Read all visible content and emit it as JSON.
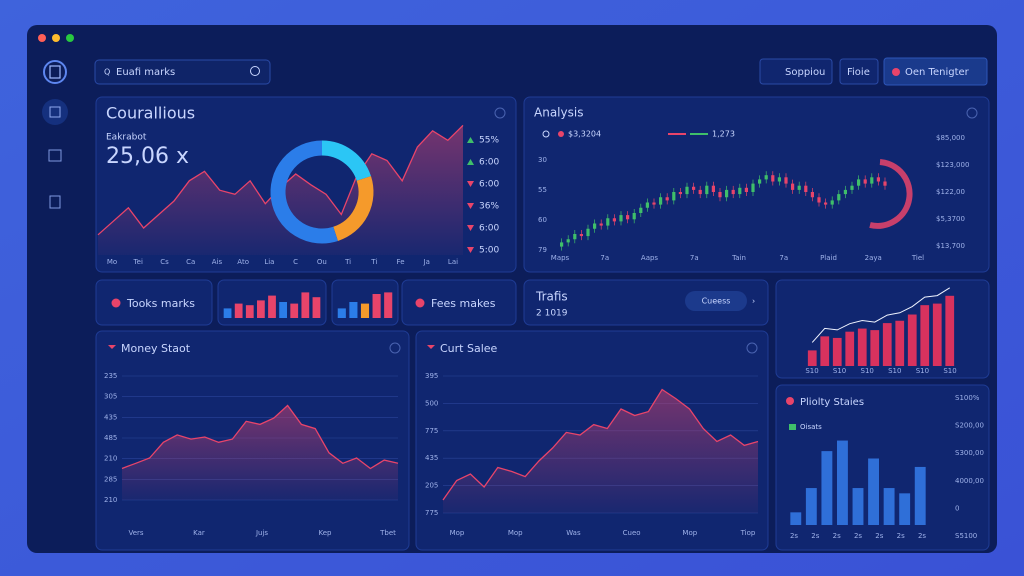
{
  "header": {
    "search": "Euafi marks",
    "buttons": [
      "Soppiou",
      "Fioie",
      "Oen Tenigter"
    ]
  },
  "widgets": {
    "left_pill": "Tooks marks",
    "right_pill": "Fees makes",
    "trafis_title": "Trafis",
    "trafis_value": "2 1019",
    "trafis_toggle": "Cueess"
  },
  "chart_data": [
    {
      "type": "area",
      "title": "Courallious",
      "subtitle": "Eakrabot",
      "kpi": "25,06 x",
      "color": "#e8446a",
      "values": [
        15,
        25,
        35,
        20,
        30,
        40,
        55,
        62,
        48,
        45,
        55,
        38,
        50,
        60,
        52,
        45,
        30,
        58,
        75,
        70,
        55,
        80,
        92,
        85,
        96
      ],
      "ylim": [
        0,
        100
      ],
      "x_labels": [
        "Mo",
        "Tei",
        "Cs",
        "Ca",
        "Ais",
        "Ato",
        "Lia",
        "C",
        "Ou",
        "Ti",
        "Ti",
        "Fe",
        "Ja",
        "Lai"
      ],
      "legend": [
        {
          "label": "55%",
          "color": "#3fbf6a"
        },
        {
          "label": "6:00",
          "color": "#3fbf6a"
        },
        {
          "label": "6:00",
          "color": "#e8446a"
        },
        {
          "label": "36%",
          "color": "#e8446a"
        },
        {
          "label": "6:00",
          "color": "#e8446a"
        },
        {
          "label": "5:00",
          "color": "#e8446a"
        }
      ]
    },
    {
      "type": "donut",
      "values": [
        20,
        25,
        55
      ],
      "colors": [
        "#2bc6f5",
        "#f59a2b",
        "#2b7de9"
      ]
    },
    {
      "type": "candles",
      "title": "Analysis",
      "legend": [
        "$3,3204",
        "1,273"
      ],
      "up_color": "#3fbf6a",
      "down_color": "#e8446a",
      "values": [
        8,
        12,
        15,
        20,
        18,
        25,
        30,
        28,
        35,
        32,
        38,
        34,
        40,
        45,
        50,
        48,
        55,
        52,
        60,
        58,
        65,
        62,
        58,
        66,
        60,
        55,
        62,
        58,
        64,
        60,
        68,
        72,
        76,
        70,
        74,
        68,
        62,
        66,
        60,
        55,
        50,
        48,
        52,
        58,
        62,
        66,
        72,
        68,
        74,
        70,
        66
      ],
      "ylim": [
        0,
        100
      ],
      "y_labels": [
        "30",
        "55",
        "60",
        "79"
      ],
      "y2_labels": [
        "$85,000",
        "$123,000",
        "$122,00",
        "$5,3700",
        "$13,700"
      ],
      "x_labels": [
        "Maps",
        "7a",
        "Aaps",
        "7a",
        "Tain",
        "7a",
        "Plaid",
        "2aya",
        "Tiel"
      ]
    },
    {
      "type": "bar",
      "values": [
        30,
        45,
        40,
        55,
        70,
        50,
        45,
        80,
        65
      ],
      "ylim": [
        0,
        100
      ],
      "colors": [
        "#2b7de9",
        "#e8446a",
        "#e8446a",
        "#e8446a",
        "#e8446a",
        "#2b7de9",
        "#e8446a",
        "#e8446a",
        "#e8446a"
      ]
    },
    {
      "type": "bar",
      "values": [
        30,
        50,
        45,
        75,
        80
      ],
      "ylim": [
        0,
        100
      ],
      "colors": [
        "#2b7de9",
        "#2b7de9",
        "#f59a2b",
        "#e8446a",
        "#e8446a"
      ]
    },
    {
      "type": "bar",
      "values": [
        20,
        38,
        36,
        44,
        48,
        46,
        55,
        58,
        66,
        78,
        80,
        90
      ],
      "ylim": [
        0,
        100
      ],
      "color": "#d8325e",
      "line": true,
      "x_labels": [
        "S10",
        "S10",
        "S10",
        "S10",
        "S10",
        "S10"
      ]
    },
    {
      "type": "area",
      "title": "Money Staot",
      "color": "#e8446a",
      "values": [
        30,
        35,
        40,
        55,
        62,
        58,
        60,
        55,
        58,
        75,
        72,
        78,
        90,
        72,
        68,
        45,
        35,
        40,
        30,
        38,
        35
      ],
      "ylim": [
        0,
        100
      ],
      "y_labels": [
        "235",
        "305",
        "435",
        "485",
        "210",
        "285",
        "210"
      ],
      "x_labels": [
        "Vers",
        "Kar",
        "Jujs",
        "Kep",
        "Tbet"
      ]
    },
    {
      "type": "area",
      "title": "Curt Salee",
      "color": "#e8446a",
      "values": [
        10,
        25,
        30,
        20,
        35,
        32,
        28,
        40,
        50,
        62,
        60,
        68,
        65,
        80,
        75,
        78,
        95,
        88,
        80,
        65,
        55,
        60,
        52,
        55
      ],
      "ylim": [
        0,
        100
      ],
      "y_labels": [
        "395",
        "500",
        "775",
        "435",
        "205",
        "775"
      ],
      "x_labels": [
        "Mop",
        "Mop",
        "Was",
        "Cueo",
        "Mop",
        "Tiop"
      ]
    },
    {
      "type": "bar",
      "title": "Pliolty Staies",
      "legend": "Oisats",
      "values": [
        12,
        35,
        70,
        80,
        35,
        63,
        35,
        30,
        55
      ],
      "ylim": [
        0,
        90
      ],
      "color": "#2f6fd8",
      "y_labels": [
        "S100%",
        "S200,00",
        "S300,00",
        "4000,00",
        "0",
        "S5100"
      ],
      "x_labels": [
        "2s",
        "2s",
        "2s",
        "2s",
        "2s",
        "2s",
        "2s"
      ]
    }
  ]
}
